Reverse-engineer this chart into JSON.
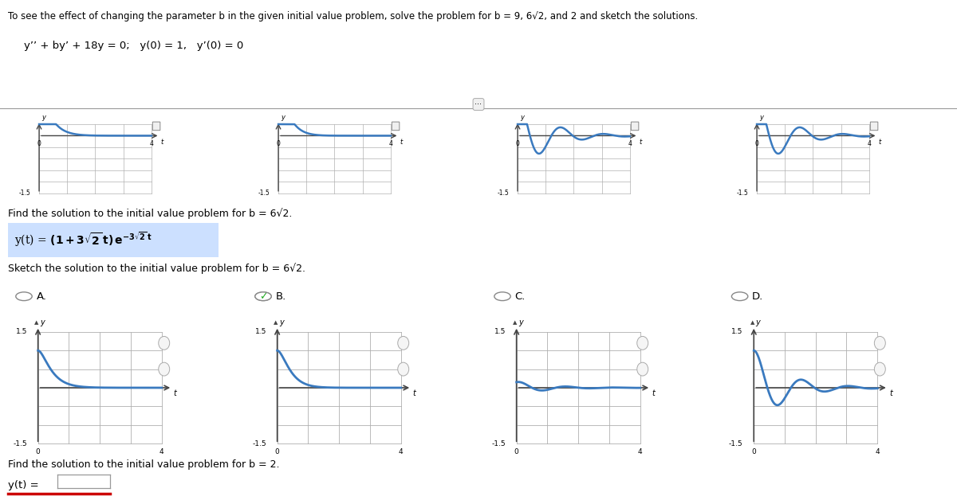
{
  "title_text": "To see the effect of changing the parameter b in the given initial value problem, solve the problem for b = 9, 6√2, and 2 and sketch the solutions.",
  "equation_text": "y′′ + by′ + 18y = 0;   y(0) = 1,   y′(0) = 0",
  "find_text_1": "Find the solution to the initial value problem for b = 6√2.",
  "sketch_text": "Sketch the solution to the initial value problem for b = 6√2.",
  "find_text_2": "Find the solution to the initial value problem for b = 2.",
  "answer_label": "y(t) =",
  "options": [
    "A.",
    "B.",
    "C.",
    "D."
  ],
  "checked_option": 1,
  "bg_color": "#ffffff",
  "curve_color": "#3a7abf",
  "grid_color": "#b0b0b0",
  "axis_color": "#444444",
  "highlight_color": "#cce0ff",
  "bottom_line_color": "#cc0000",
  "check_color": "#22aa22",
  "xlim": [
    0,
    4
  ],
  "ylim": [
    -1.5,
    1.5
  ]
}
